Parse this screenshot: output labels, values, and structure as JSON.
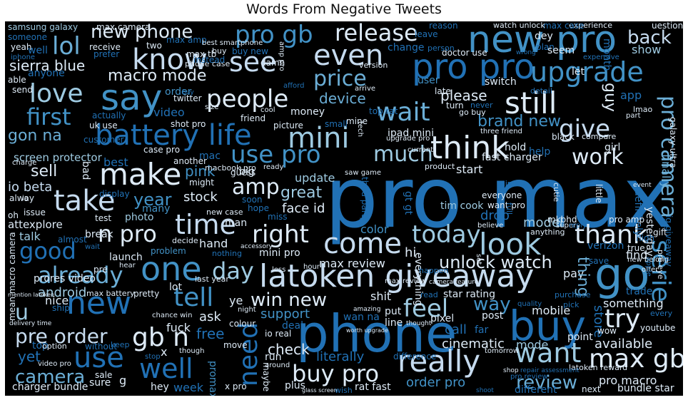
{
  "title": "Words From Negative Tweets",
  "palette": {
    "background": "#000000",
    "colors": [
      "#08306b",
      "#08519c",
      "#2171b5",
      "#4292c6",
      "#6baed6",
      "#9ecae1",
      "#c6dbef",
      "#deebf7"
    ]
  },
  "words": {
    "w1": "pro max",
    "w2": "phone",
    "w3": "latoken giveaway",
    "w4": "go",
    "w5": "buy",
    "w6": "new pro",
    "w7": "pro pro",
    "w8": "upgrade",
    "w9": "know",
    "w10": "see",
    "w11": "lol",
    "w12": "love",
    "w13": "say",
    "w14": "people",
    "w15": "still",
    "w16": "first",
    "w17": "battery life",
    "w18": "mini",
    "w19": "wait",
    "w20": "think",
    "w21": "make",
    "w22": "take",
    "w23": "use pro",
    "w24": "amp",
    "w25": "much",
    "w26": "work",
    "w27": "give",
    "w28": "brand new",
    "w29": "pro camera",
    "w30": "time",
    "w31": "right",
    "w32": "come",
    "w33": "look",
    "w34": "today",
    "w35": "thank",
    "w36": "one",
    "w37": "day",
    "w38": "already",
    "w39": "good",
    "w40": "n pro",
    "w41": "new",
    "w42": "tell",
    "w43": "win new",
    "w44": "unlock watch",
    "w45": "feel",
    "w46": "way",
    "w47": "want",
    "w48": "max gb",
    "w49": "try",
    "w50": "use",
    "w51": "well",
    "w52": "gb n",
    "w53": "pre order",
    "w54": "camera",
    "w55": "need",
    "w56": "buy pro",
    "w57": "really",
    "w58": "review",
    "w59": "pro gb",
    "w60": "new phone",
    "w61": "release",
    "w62": "even",
    "w63": "price",
    "w64": "macro mode",
    "w65": "sierra blue",
    "w66": "back",
    "w67": "show",
    "w68": "serie",
    "w69": "u",
    "w70": "yet",
    "w71": "sell",
    "w72": "year",
    "w73": "io beta",
    "w74": "screen protector",
    "w75": "gon na",
    "w76": "attexplore",
    "w77": "talk",
    "w78": "great",
    "w79": "face id",
    "w80": "update",
    "w81": "order pro",
    "w82": "cinematic",
    "w83": "mode",
    "w84": "available",
    "w85": "pro macro",
    "w86": "fast charger",
    "w87": "start",
    "w88": "something",
    "w89": "youtube",
    "w90": "pay",
    "w91": "thing",
    "w92": "store",
    "w93": "model",
    "w94": "drop",
    "w95": "verizon",
    "w96": "find",
    "w97": "hi",
    "w98": "max review",
    "w99": "tim cook",
    "w100": "mobile",
    "w101": "call",
    "w102": "android",
    "w103": "prores video",
    "w104": "stock",
    "w105": "pink",
    "w106": "hand",
    "w107": "support",
    "w108": "check",
    "w109": "literally",
    "w110": "ask",
    "w111": "fuck",
    "w112": "hey",
    "w113": "week",
    "w114": "free",
    "w115": "ye",
    "w116": "io real",
    "w117": "shit",
    "w118": "put",
    "w119": "color",
    "w120": "device",
    "w121": "please",
    "w122": "guy",
    "w123": "app",
    "w124": "ipad mini",
    "w125": "help",
    "w126": "girl",
    "w127": "switch",
    "w128": "user",
    "w129": "money",
    "w130": "video",
    "w131": "uk use",
    "w132": "shot pro",
    "w133": "twitter",
    "w134": "order",
    "w135": "anyone",
    "w136": "samsung galaxy",
    "w137": "someone",
    "w138": "change",
    "w139": "leave",
    "w140": "amp pro",
    "w141": "max camera",
    "w142": "buy new",
    "w143": "guess",
    "w144": "new case",
    "w145": "hope",
    "w146": "soon",
    "w147": "man",
    "w148": "miss",
    "w149": "many",
    "w150": "photo",
    "w151": "launch",
    "w152": "problem",
    "w153": "lot",
    "w154": "mini pro",
    "w155": "break",
    "w156": "nice",
    "w157": "best",
    "w158": "customer",
    "w159": "big",
    "w160": "might",
    "w161": "bad",
    "w162": "yesterday",
    "w163": "definitely",
    "w164": "finally",
    "w165": "ig giveaway",
    "w166": "galaxy ultra",
    "w167": "let",
    "w168": "month",
    "w169": "dey",
    "w170": "plan",
    "w171": "seem",
    "w172": "max tb",
    "w173": "promax",
    "w174": "wan na",
    "w175": "line",
    "w176": "pixel",
    "w177": "far",
    "w178": "post",
    "w179": "point",
    "w180": "wow",
    "w181": "latoken reward",
    "w182": "next",
    "w183": "bundle star",
    "w184": "different",
    "w185": "plus",
    "w186": "rat fast",
    "w187": "x pro",
    "w188": "sure",
    "w189": "sale",
    "w190": "charger bundle",
    "w191": "top",
    "w192": "g",
    "w193": "x",
    "w194": "colour",
    "w195": "move",
    "w196": "run",
    "w197": "maybe",
    "w198": "deal",
    "w199": "difference",
    "w200": "star rating",
    "w201": "trade",
    "w202": "gift",
    "w203": "pro amp",
    "w204": "high",
    "w205": "everyone",
    "w206": "want pro",
    "w207": "mkbhd",
    "w208": "anything",
    "w209": "black",
    "w210": "hold",
    "w211": "compare",
    "w212": "last year",
    "w213": "actually",
    "w214": "experience",
    "w215": "max case",
    "w216": "watch unlock",
    "w217": "reason",
    "w218": "doctor use",
    "w219": "person",
    "w220": "version",
    "w221": "buy",
    "w222": "phone case",
    "w223": "max amp",
    "w224": "two",
    "w225": "receive",
    "w226": "yeah",
    "w227": "iphone",
    "w228": "prefer",
    "w229": "able",
    "w230": "well",
    "w231": "send",
    "w232": "everything",
    "w233": "third party",
    "w234": "gt gt",
    "w235": "small",
    "w236": "mine",
    "w237": "late",
    "w238": "issue",
    "w239": "oh",
    "w240": "alway",
    "w241": "display",
    "w242": "another",
    "w243": "mac",
    "w244": "case pro",
    "w245": "friend",
    "w246": "picture",
    "w247": "cool",
    "w248": "top rat",
    "w249": "go buy",
    "w250": "turn",
    "w251": "never",
    "w252": "detail",
    "w253": "instead",
    "w254": "best smartphone",
    "w255": "three friend",
    "w256": "cutie",
    "w257": "little",
    "w258": "full",
    "w259": "true",
    "w260": "new belong",
    "w261": "save",
    "w262": "pro review",
    "w263": "io",
    "w264": "test",
    "w265": "almost",
    "w266": "mean macro camera",
    "w267": "ship",
    "w268": "wait",
    "w269": "pre",
    "w270": "macbook pro",
    "w271": "product",
    "w272": "charge",
    "w273": "ready",
    "w274": "upgrade pro",
    "w275": "saw game",
    "w276": "current",
    "w277": "minute",
    "w278": "tech",
    "w279": "believe",
    "w280": "lmao",
    "w281": "part",
    "w282": "purchase",
    "w283": "offer",
    "w284": "apple",
    "w285": "pro eye",
    "w286": "every",
    "w287": "event",
    "w288": "read",
    "w289": "happen",
    "w290": "set",
    "w291": "hour",
    "w292": "without",
    "w293": "option",
    "w294": "video pro",
    "w295": "chance win",
    "w296": "max battery",
    "w297": "pretty",
    "w298": "decide",
    "w299": "nothing",
    "w300": "hear",
    "w301": "though",
    "w302": "around",
    "w303": "amazing",
    "w304": "thought",
    "w305": "delivery time",
    "w306": "tomorrow",
    "w307": "shop",
    "w308": "repair assessment",
    "w309": "shoot",
    "w310": "glass screen",
    "w311": "wish",
    "w312": "stop",
    "w313": "keep",
    "w314": "worth upgrade",
    "w315": "quality",
    "w316": "pick",
    "w317": "max review",
    "w318": "less",
    "w319": "night",
    "w320": "accessory",
    "w321": "super",
    "w322": "reply",
    "w323": "uestion",
    "w324": "camera feature",
    "w325": "mention latoken",
    "w326": "damn",
    "w327": "afford",
    "w328": "arrive",
    "w329": "wrong",
    "w330": "expensive",
    "w331": "size",
    "w332": "buy"
  }
}
